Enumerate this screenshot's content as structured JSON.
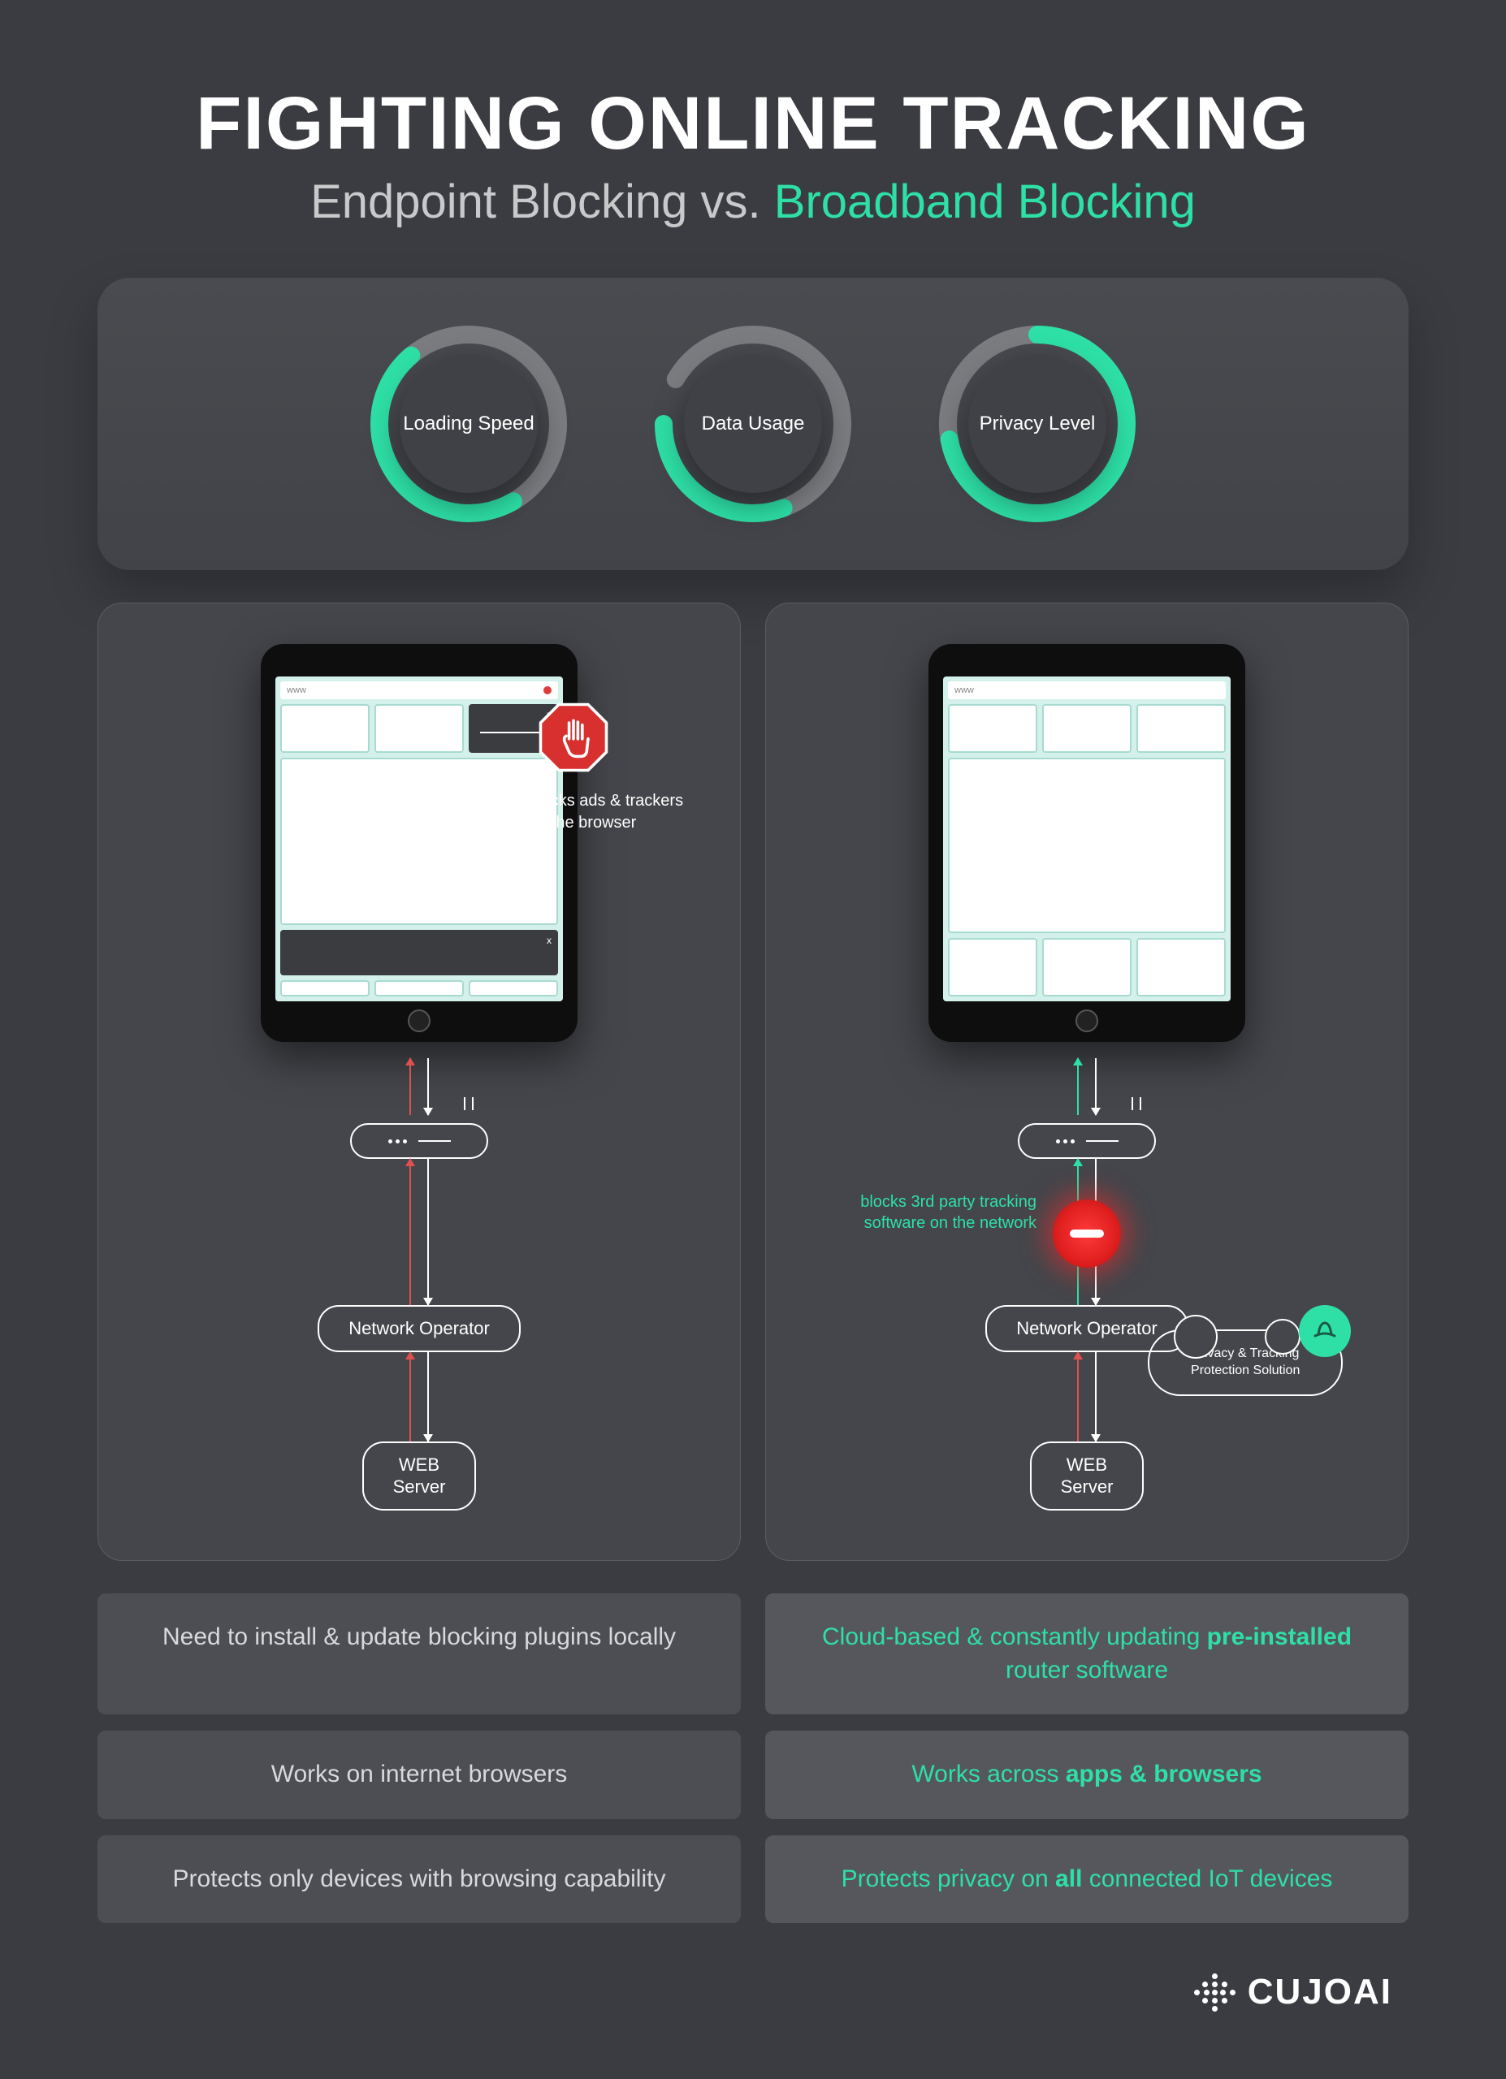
{
  "title": "FIGHTING ONLINE TRACKING",
  "subtitle_left": "Endpoint Blocking",
  "subtitle_vs": "vs.",
  "subtitle_right": "Broadband Blocking",
  "accent_color": "#2ee0a6",
  "bg_color": "#3a3c41",
  "panel_color": "#44464b",
  "gauges": [
    {
      "label": "Loading\nSpeed",
      "gray_start": -45,
      "gray_sweep": 200,
      "green_start": 150,
      "green_sweep": 170
    },
    {
      "label": "Data\nUsage",
      "gray_start": -60,
      "gray_sweep": 240,
      "green_start": 160,
      "green_sweep": 110
    },
    {
      "label": "Privacy\nLevel",
      "gray_start": -100,
      "gray_sweep": 110,
      "green_start": 0,
      "green_sweep": 260
    }
  ],
  "gauge_style": {
    "radius": 110,
    "stroke_width": 22,
    "gray_color": "#7a7c80",
    "green_color": "#2ee0a6",
    "inner_bg": "#3f4146"
  },
  "left_diagram": {
    "addrbar": "www",
    "stop_label": "blocks ads & trackers on the browser",
    "network_operator": "Network Operator",
    "web_server": "WEB\nServer",
    "up_arrow_color": "#e05050"
  },
  "right_diagram": {
    "addrbar": "www",
    "block_label": "blocks 3rd party tracking software on the network",
    "network_operator": "Network Operator",
    "cloud_label": "Privacy & Tracking Protection Solution",
    "web_server": "WEB\nServer",
    "up_arrow_top_color": "#2ee0a6",
    "up_arrow_bottom_color": "#e05050"
  },
  "comparison": [
    {
      "left": "Need to install & update blocking plugins locally",
      "right_pre": "Cloud-based & constantly updating ",
      "right_bold": "pre-installed",
      "right_post": " router software"
    },
    {
      "left": "Works on internet browsers",
      "right_pre": "Works across ",
      "right_bold": "apps & browsers",
      "right_post": ""
    },
    {
      "left": "Protects only devices with browsing capability",
      "right_pre": "Protects privacy on ",
      "right_bold": "all",
      "right_post": " connected IoT devices"
    }
  ],
  "footer_brand": "CUJOAI"
}
